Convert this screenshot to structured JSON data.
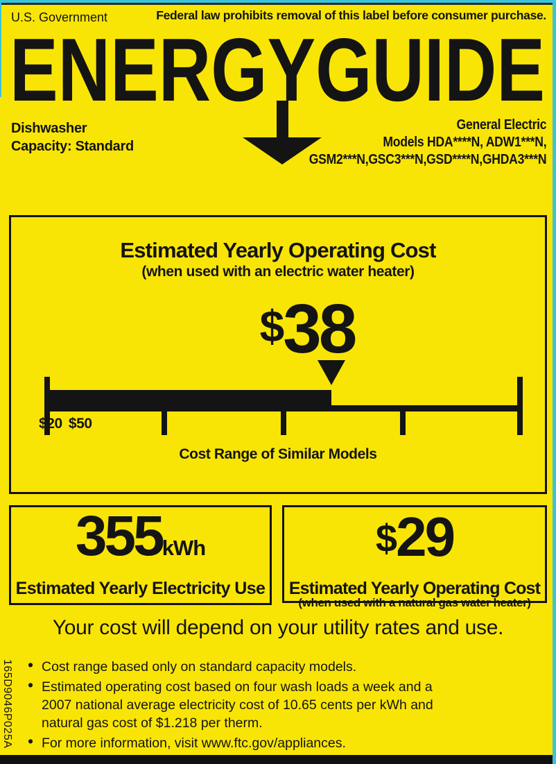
{
  "colors": {
    "label_yellow": "#F9E505",
    "edge_cyan": "#3BC4D6",
    "edge_navy": "#1C2A33",
    "ink": "#141414"
  },
  "header": {
    "government": "U.S. Government",
    "federal_notice": "Federal law prohibits removal of this label before consumer purchase.",
    "title": "ENERGYGUIDE"
  },
  "product": {
    "type": "Dishwasher",
    "capacity": "Capacity: Standard",
    "brand": "General Electric",
    "models_line1": "Models HDA****N, ADW1***N,",
    "models_line2": "GSM2***N,GSC3***N,GSD****N,GHDA3***N"
  },
  "main_box": {
    "title": "Estimated Yearly Operating Cost",
    "subtitle": "(when used with an electric water heater)",
    "cost_symbol": "$",
    "cost_value": "38",
    "caption": "Cost Range of Similar Models",
    "scale": {
      "min": 20,
      "max": 50,
      "value": 38,
      "min_label": "$20",
      "max_label": "$50"
    }
  },
  "electricity_box": {
    "value": "355",
    "unit": "kWh",
    "label": "Estimated Yearly Electricity Use"
  },
  "gas_box": {
    "symbol": "$",
    "value": "29",
    "label": "Estimated Yearly Operating Cost",
    "sublabel": "(when used with a natural gas water heater)"
  },
  "footer": {
    "statement": "Your cost will depend on your utility rates and use.",
    "bullets": [
      "Cost range based only on standard capacity models.",
      "Estimated operating cost based on four wash loads a week and a 2007 national average electricity cost of 10.65 cents per kWh and natural gas cost of $1.218 per therm.",
      "For more information, visit www.ftc.gov/appliances."
    ],
    "part_number": "165D9046P025A"
  }
}
